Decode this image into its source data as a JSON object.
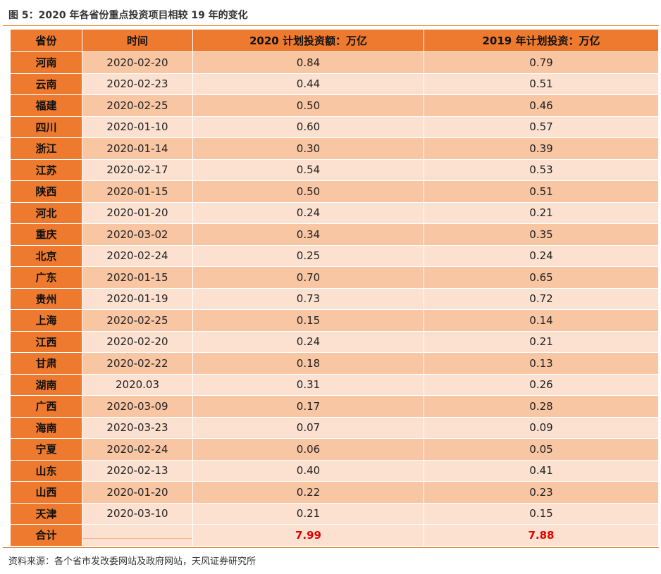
{
  "title": "图 5：2020 年各省份重点投资项目相较 19 年的变化",
  "headers": [
    "省份",
    "时间",
    "2020 计划投资额：万亿",
    "2019 年计划投资：万亿"
  ],
  "rows": [
    {
      "province": "河南",
      "date": "2020-02-20",
      "plan2020": "0.84",
      "plan2019": "0.79"
    },
    {
      "province": "云南",
      "date": "2020-02-23",
      "plan2020": "0.44",
      "plan2019": "0.51"
    },
    {
      "province": "福建",
      "date": "2020-02-25",
      "plan2020": "0.50",
      "plan2019": "0.46"
    },
    {
      "province": "四川",
      "date": "2020-01-10",
      "plan2020": "0.60",
      "plan2019": "0.57"
    },
    {
      "province": "浙江",
      "date": "2020-01-14",
      "plan2020": "0.30",
      "plan2019": "0.39"
    },
    {
      "province": "江苏",
      "date": "2020-02-17",
      "plan2020": "0.54",
      "plan2019": "0.53"
    },
    {
      "province": "陕西",
      "date": "2020-01-15",
      "plan2020": "0.50",
      "plan2019": "0.51"
    },
    {
      "province": "河北",
      "date": "2020-01-20",
      "plan2020": "0.24",
      "plan2019": "0.21"
    },
    {
      "province": "重庆",
      "date": "2020-03-02",
      "plan2020": "0.34",
      "plan2019": "0.35"
    },
    {
      "province": "北京",
      "date": "2020-02-24",
      "plan2020": "0.25",
      "plan2019": "0.24"
    },
    {
      "province": "广东",
      "date": "2020-01-15",
      "plan2020": "0.70",
      "plan2019": "0.65"
    },
    {
      "province": "贵州",
      "date": "2020-01-19",
      "plan2020": "0.73",
      "plan2019": "0.72"
    },
    {
      "province": "上海",
      "date": "2020-02-25",
      "plan2020": "0.15",
      "plan2019": "0.14"
    },
    {
      "province": "江西",
      "date": "2020-02-20",
      "plan2020": "0.24",
      "plan2019": "0.21"
    },
    {
      "province": "甘肃",
      "date": "2020-02-22",
      "plan2020": "0.18",
      "plan2019": "0.13"
    },
    {
      "province": "湖南",
      "date": "2020.03",
      "plan2020": "0.31",
      "plan2019": "0.26"
    },
    {
      "province": "广西",
      "date": "2020-03-09",
      "plan2020": "0.17",
      "plan2019": "0.28"
    },
    {
      "province": "海南",
      "date": "2020-03-23",
      "plan2020": "0.07",
      "plan2019": "0.09"
    },
    {
      "province": "宁夏",
      "date": "2020-02-24",
      "plan2020": "0.06",
      "plan2019": "0.05"
    },
    {
      "province": "山东",
      "date": "2020-02-13",
      "plan2020": "0.40",
      "plan2019": "0.41"
    },
    {
      "province": "山西",
      "date": "2020-01-20",
      "plan2020": "0.22",
      "plan2019": "0.23"
    },
    {
      "province": "天津",
      "date": "2020-03-10",
      "plan2020": "0.21",
      "plan2019": "0.15"
    }
  ],
  "total": {
    "label": "合计",
    "plan2020": "7.99",
    "plan2019": "7.88"
  },
  "source": "资料来源：各个省市发改委网站及政府网站，天风证券研究所",
  "colors": {
    "header": "#ee7a2f",
    "row_dark": "#f8c6a3",
    "row_light": "#fce1d0",
    "total_value": "#e00000"
  }
}
